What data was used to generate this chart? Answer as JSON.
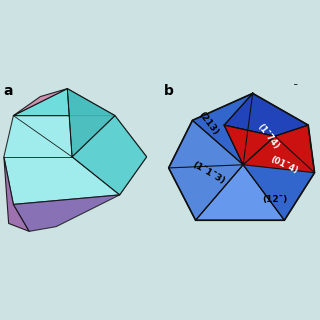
{
  "background_color": "#cde3e3",
  "edge_color": "#111111",
  "panel_b_bg": "#cde3e3",
  "blue_dark": "#2244bb",
  "blue_mid": "#3366cc",
  "blue_light": "#5588dd",
  "blue_lighter": "#6699ee",
  "red_bright": "#cc1111",
  "red_darker": "#aa0000",
  "cyan_face": "#66dddd",
  "cyan_light": "#99eeee",
  "purple_face": "#9966aa",
  "pink_face": "#cc88aa",
  "labels": {
    "panel_a": "a",
    "panel_b": "b",
    "top_bar": "¯",
    "face_213": "(213)",
    "face_174": "(1¯74)",
    "face_014": "(01¯4)",
    "face_1m13": "(1¯1¯3)",
    "face_12x": "(12¯)"
  }
}
